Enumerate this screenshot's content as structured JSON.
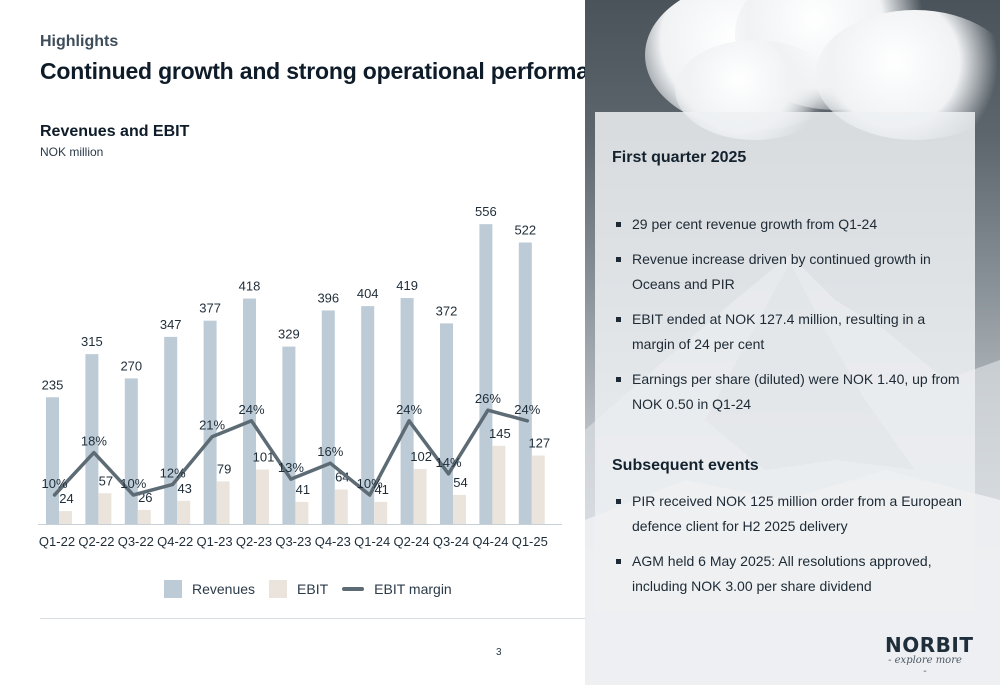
{
  "header": {
    "eyebrow": "Highlights",
    "title": "Continued growth and strong operational performance"
  },
  "chart_data": {
    "type": "bar",
    "title": "Revenues and EBIT",
    "subtitle": "NOK million",
    "categories": [
      "Q1-22",
      "Q2-22",
      "Q3-22",
      "Q4-22",
      "Q1-23",
      "Q2-23",
      "Q3-23",
      "Q4-23",
      "Q1-24",
      "Q2-24",
      "Q3-24",
      "Q4-24",
      "Q1-25"
    ],
    "series": [
      {
        "name": "Revenues",
        "kind": "bar",
        "color": "#bccbd6",
        "values": [
          235,
          315,
          270,
          347,
          377,
          418,
          329,
          396,
          404,
          419,
          372,
          556,
          522
        ]
      },
      {
        "name": "EBIT",
        "kind": "bar",
        "color": "#ebe4dc",
        "values": [
          24,
          57,
          26,
          43,
          79,
          101,
          41,
          64,
          41,
          102,
          54,
          145,
          127
        ]
      },
      {
        "name": "EBIT margin",
        "kind": "line",
        "color": "#5d6b75",
        "values": [
          10,
          18,
          10,
          12,
          21,
          24,
          13,
          16,
          10,
          24,
          14,
          26,
          24
        ],
        "value_suffix": "%"
      }
    ],
    "ylim": [
      0,
      560
    ],
    "legend_position": "bottom",
    "grid": false
  },
  "legend": {
    "revenues": "Revenues",
    "ebit": "EBIT",
    "margin": "EBIT margin"
  },
  "panel": {
    "first_quarter_heading": "First quarter 2025",
    "first_quarter_bullets": [
      "29 per cent revenue growth from Q1-24",
      "Revenue increase driven by continued growth in Oceans and PIR",
      "EBIT ended at NOK 127.4 million, resulting in a margin of 24 per cent",
      "Earnings per share (diluted) were NOK 1.40, up from NOK 0.50 in Q1-24"
    ],
    "subsequent_heading": "Subsequent events",
    "subsequent_bullets": [
      "PIR received NOK 125 million order from a European defence client for H2 2025 delivery",
      "AGM held 6 May 2025: All resolutions approved, including NOK 3.00 per share dividend"
    ]
  },
  "footer": {
    "page_number": "3",
    "logo_text": "NORBIT",
    "logo_tagline": "- explore more -"
  }
}
